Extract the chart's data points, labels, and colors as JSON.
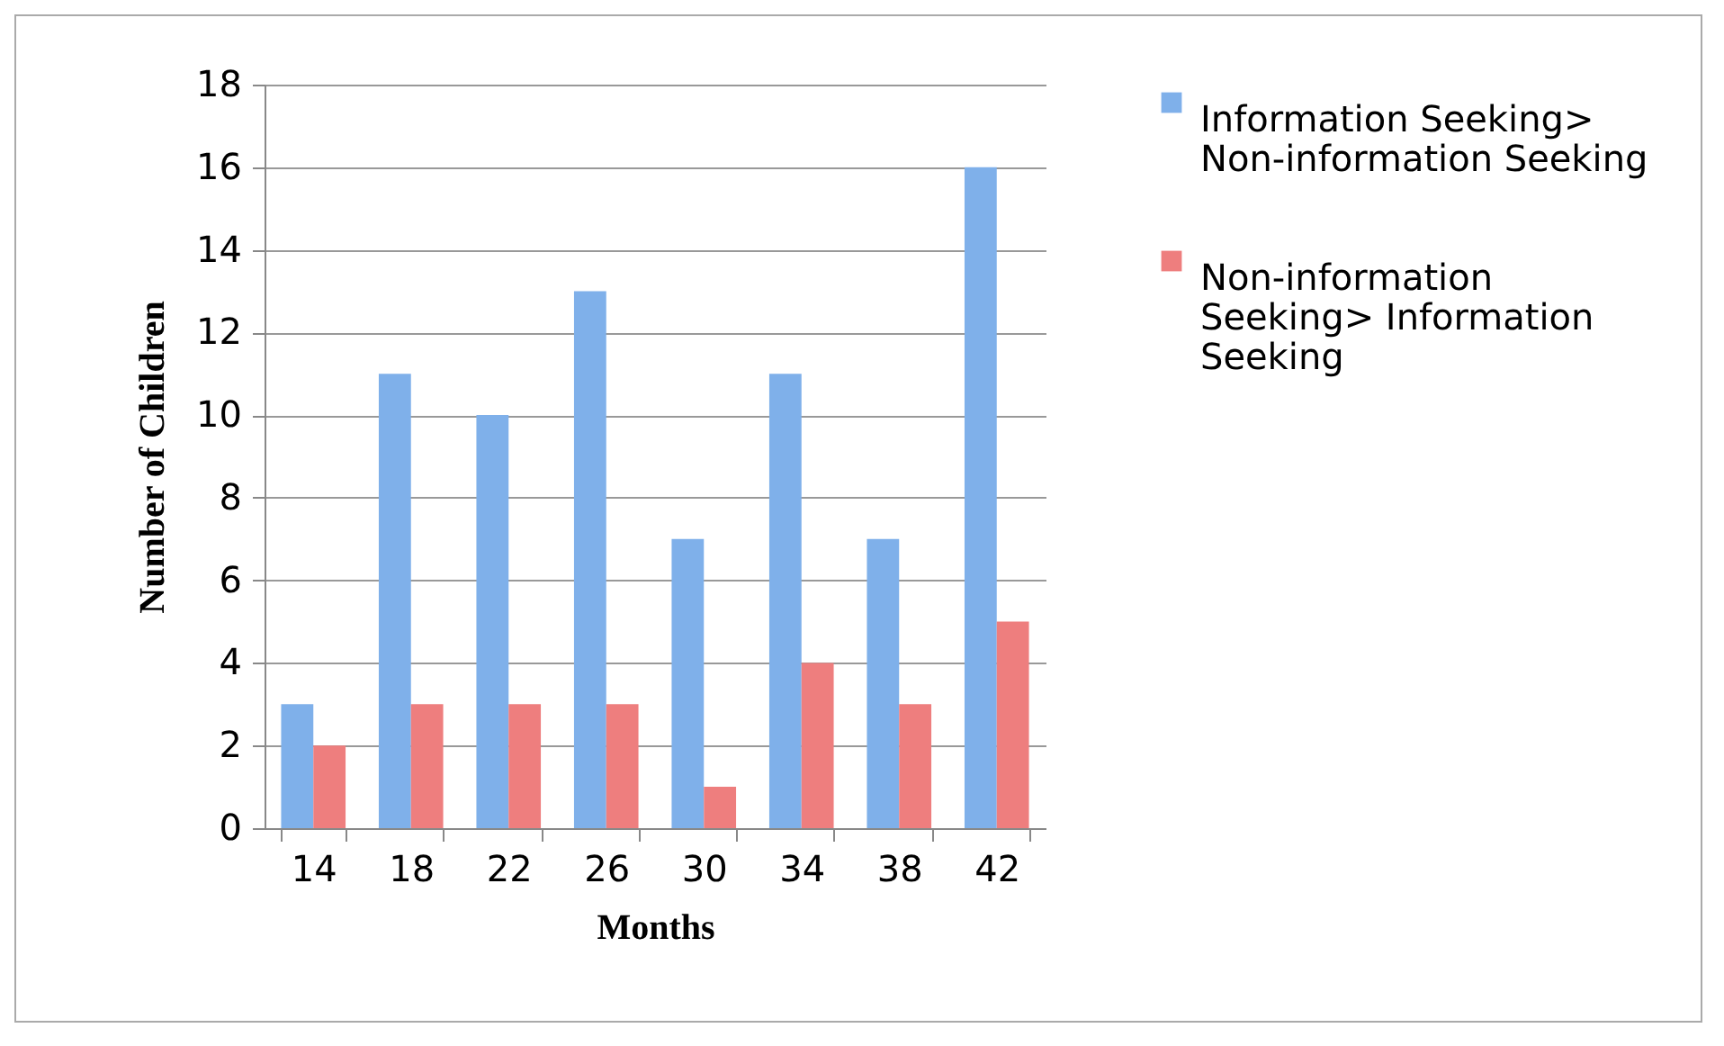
{
  "chart_data": {
    "type": "bar",
    "xlabel": "Months",
    "ylabel": "Number of Children",
    "categories": [
      "14",
      "18",
      "22",
      "26",
      "30",
      "34",
      "38",
      "42"
    ],
    "series": [
      {
        "name": "Information Seeking> Non-information Seeking",
        "color": "#7fb0ea",
        "values": [
          3,
          11,
          10,
          13,
          7,
          11,
          7,
          16
        ]
      },
      {
        "name": "Non-information Seeking> Information Seeking",
        "color": "#ee7e7e",
        "values": [
          2,
          3,
          3,
          3,
          1,
          4,
          3,
          5
        ]
      }
    ],
    "ylim": [
      0,
      18
    ],
    "yticks": [
      0,
      2,
      4,
      6,
      8,
      10,
      12,
      14,
      16,
      18
    ],
    "grid": "y",
    "legend": "right"
  }
}
